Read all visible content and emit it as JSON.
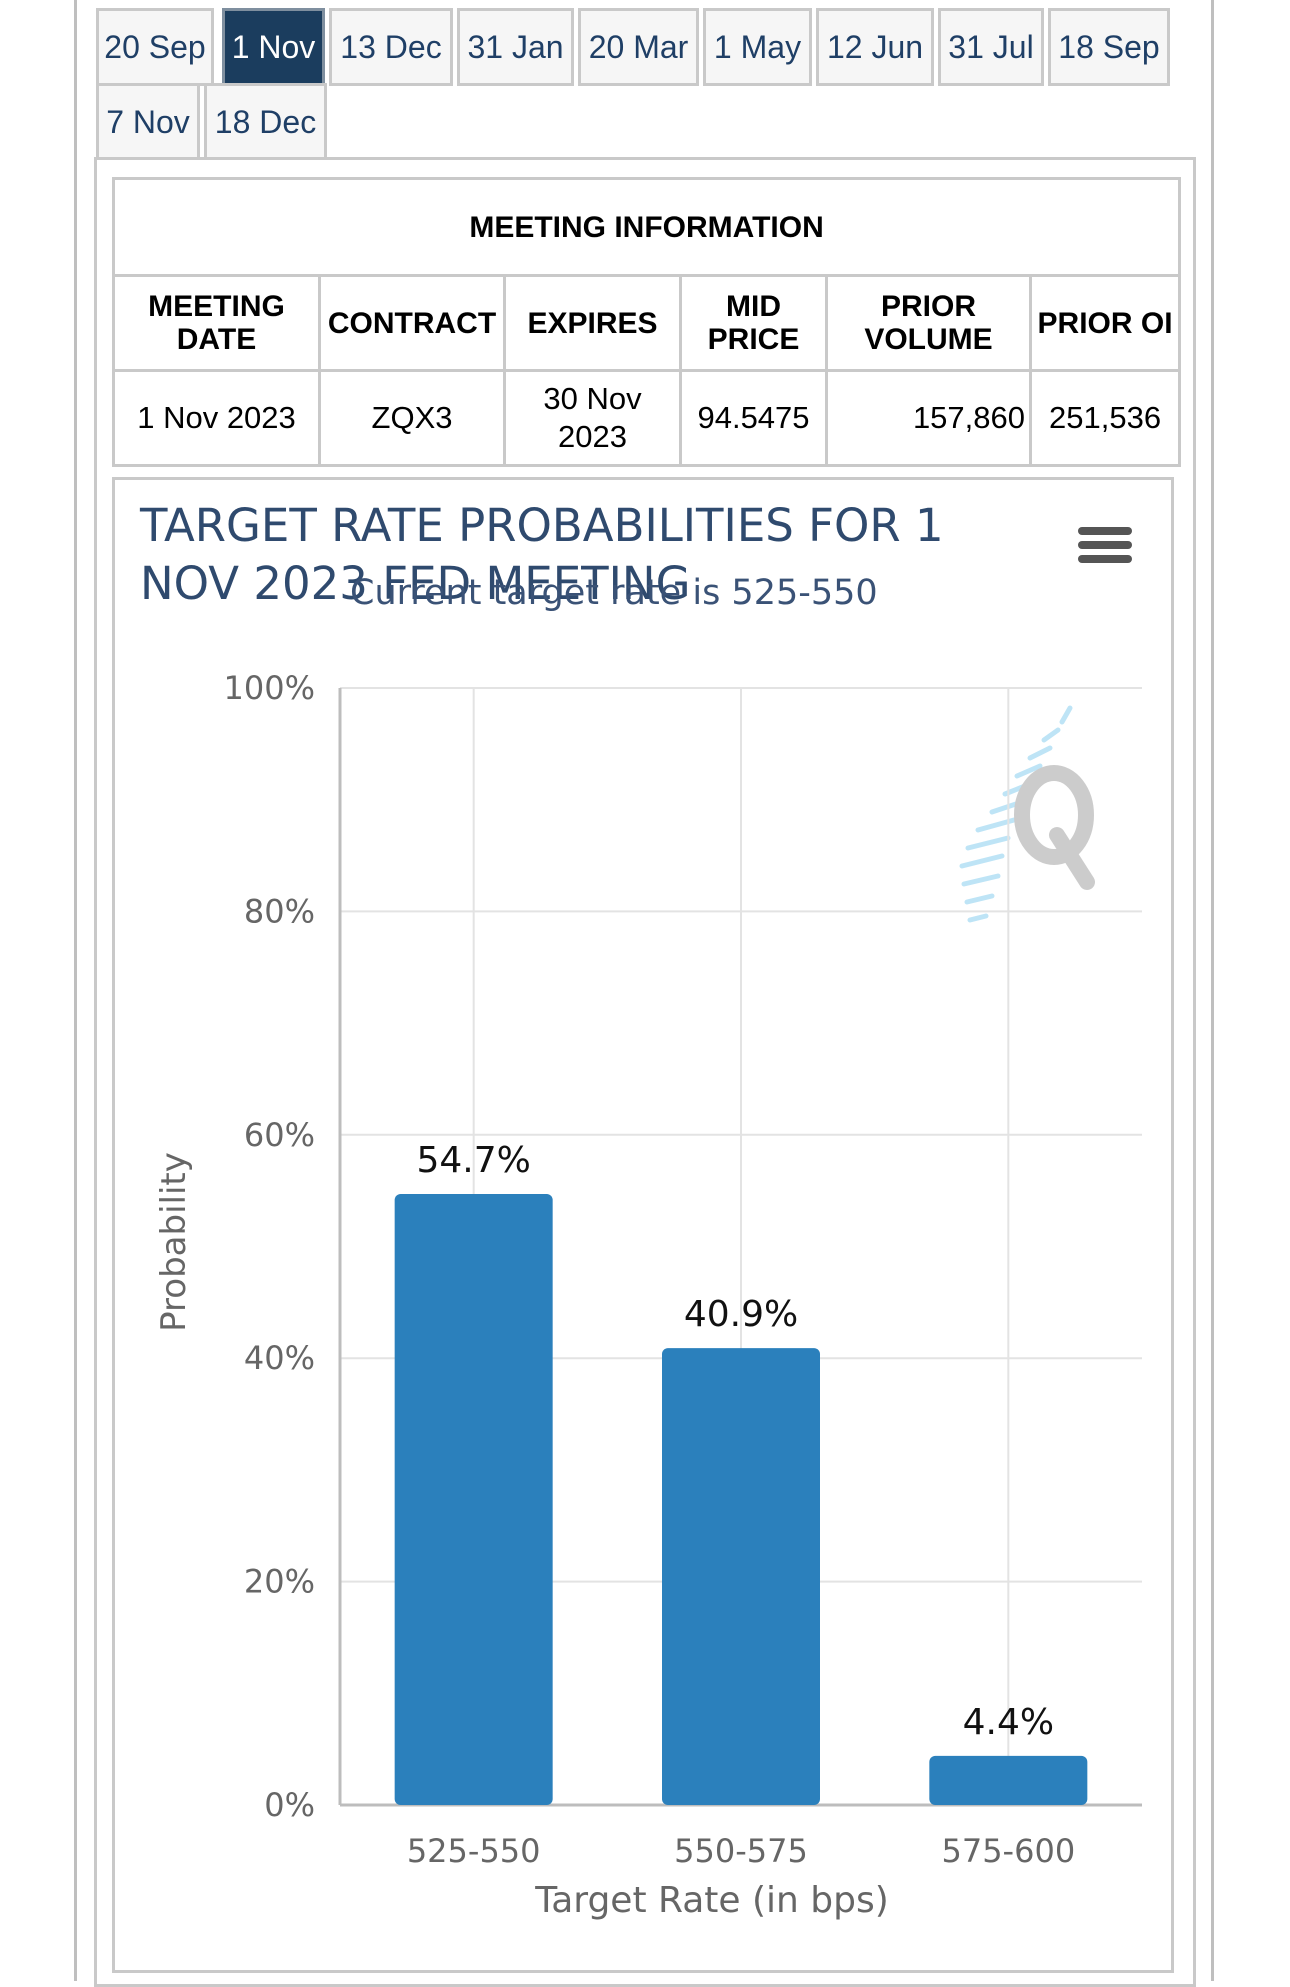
{
  "tabs": [
    {
      "label": "20 Sep",
      "active": false
    },
    {
      "label": "1 Nov",
      "active": true
    },
    {
      "label": "13 Dec",
      "active": false
    },
    {
      "label": "31 Jan",
      "active": false
    },
    {
      "label": "20 Mar",
      "active": false
    },
    {
      "label": "1 May",
      "active": false
    },
    {
      "label": "12 Jun",
      "active": false
    },
    {
      "label": "31 Jul",
      "active": false
    },
    {
      "label": "18 Sep",
      "active": false
    },
    {
      "label": "7 Nov",
      "active": false
    },
    {
      "label": "18 Dec",
      "active": false
    }
  ],
  "meeting_info": {
    "heading": "MEETING INFORMATION",
    "columns": {
      "meeting_date": "MEETING DATE",
      "contract": "CONTRACT",
      "expires": "EXPIRES",
      "mid_price": "MID PRICE",
      "prior_volume": "PRIOR VOLUME",
      "prior_oi": "PRIOR OI"
    },
    "row": {
      "meeting_date": "1 Nov 2023",
      "contract": "ZQX3",
      "expires": "30 Nov 2023",
      "mid_price": "94.5475",
      "prior_volume": "157,860",
      "prior_oi": "251,536"
    }
  },
  "chart": {
    "title": "TARGET RATE PROBABILITIES FOR 1 NOV 2023 FED MEETING",
    "subtitle": "Current target rate is 525-550",
    "menu_icon": "hamburger-menu-icon",
    "watermark_icon": "q-logo-watermark"
  },
  "chart_data": {
    "type": "bar",
    "title": "TARGET RATE PROBABILITIES FOR 1 NOV 2023 FED MEETING",
    "subtitle": "Current target rate is 525-550",
    "xlabel": "Target Rate (in bps)",
    "ylabel": "Probability",
    "categories": [
      "525-550",
      "550-575",
      "575-600"
    ],
    "values": [
      54.7,
      40.9,
      4.4
    ],
    "data_labels": [
      "54.7%",
      "40.9%",
      "4.4%"
    ],
    "yticks": [
      "0%",
      "20%",
      "40%",
      "60%",
      "80%",
      "100%"
    ],
    "ylim": [
      0,
      100
    ],
    "grid": true,
    "bar_color": "#2b80bc"
  }
}
